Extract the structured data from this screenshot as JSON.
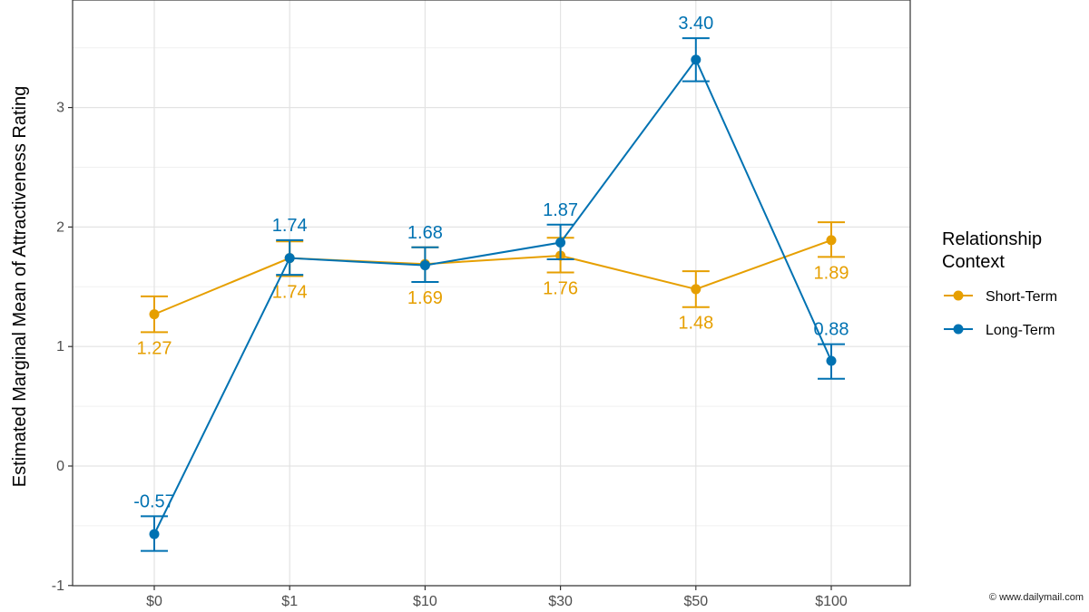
{
  "chart_data": {
    "type": "line",
    "title": "",
    "xlabel": "",
    "ylabel": "Estimated Marginal Mean of Attractiveness Rating",
    "categories": [
      "$0",
      "$1",
      "$10",
      "$30",
      "$50",
      "$100"
    ],
    "ylim": [
      -1,
      3.65
    ],
    "yticks": [
      -1,
      0,
      1,
      2,
      3
    ],
    "grid": true,
    "legend_position": "right",
    "legend_title": "Relationship\nContext",
    "series": [
      {
        "name": "Short-Term",
        "color": "#E69F00",
        "values": [
          1.27,
          1.74,
          1.69,
          1.76,
          1.48,
          1.89
        ],
        "error_low": [
          1.12,
          1.59,
          1.54,
          1.62,
          1.33,
          1.75
        ],
        "error_high": [
          1.42,
          1.88,
          1.83,
          1.91,
          1.63,
          2.04
        ],
        "labels": [
          "1.27",
          "1.74",
          "1.69",
          "1.76",
          "1.48",
          "1.89"
        ],
        "label_side": [
          "below",
          "below",
          "below",
          "below",
          "below",
          "below"
        ]
      },
      {
        "name": "Long-Term",
        "color": "#0072B2",
        "values": [
          -0.57,
          1.74,
          1.68,
          1.87,
          3.4,
          0.88
        ],
        "error_low": [
          -0.71,
          1.6,
          1.54,
          1.73,
          3.22,
          0.73
        ],
        "error_high": [
          -0.42,
          1.89,
          1.83,
          2.02,
          3.58,
          1.02
        ],
        "labels": [
          "-0.57",
          "1.74",
          "1.68",
          "1.87",
          "3.40",
          "0.88"
        ],
        "label_side": [
          "above",
          "above",
          "above",
          "above",
          "above",
          "above"
        ]
      }
    ]
  },
  "credit": "© www.dailymail.com"
}
